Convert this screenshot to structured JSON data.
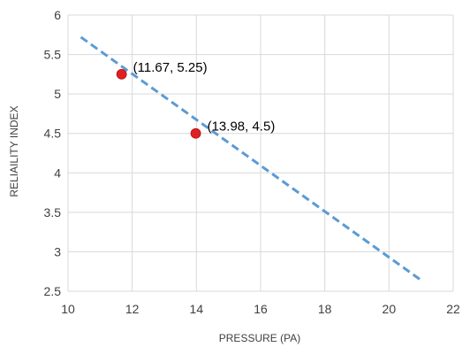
{
  "chart_data": {
    "type": "scatter",
    "xlabel": "PRESSURE (PA)",
    "ylabel": "RELIAILITY INDEX",
    "xlim": [
      10,
      22
    ],
    "ylim": [
      2.5,
      6
    ],
    "x_ticks": [
      "10",
      "12",
      "14",
      "16",
      "18",
      "20",
      "22"
    ],
    "y_ticks": [
      "2.5",
      "3",
      "3.5",
      "4",
      "4.5",
      "5",
      "5.5",
      "6"
    ],
    "grid": true,
    "legend": "none",
    "series": [
      {
        "kind": "line",
        "style": "dashed",
        "color": "#5b9bd5",
        "x": [
          10.4,
          21.0
        ],
        "y": [
          5.72,
          2.64
        ]
      },
      {
        "kind": "scatter",
        "color": "#e02020",
        "x": [
          11.67,
          13.98
        ],
        "y": [
          5.25,
          4.5
        ],
        "labels": [
          "(11.67, 5.25)",
          "(13.98, 4.5)"
        ]
      }
    ]
  },
  "colors": {
    "grid": "#d9d9d9",
    "axis_text": "#404040"
  }
}
